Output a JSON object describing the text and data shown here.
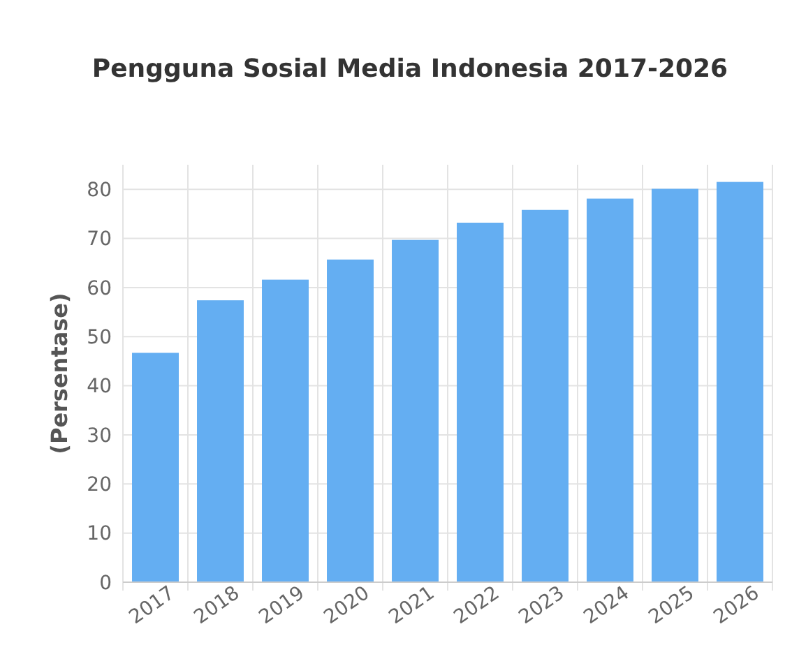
{
  "chart_data": {
    "type": "bar",
    "title": "Pengguna Sosial Media Indonesia 2017-2026",
    "ylabel": "(Persentase)",
    "categories": [
      "2017",
      "2018",
      "2019",
      "2020",
      "2021",
      "2022",
      "2023",
      "2024",
      "2025",
      "2026"
    ],
    "values": [
      46.7,
      57.4,
      61.6,
      65.7,
      69.7,
      73.2,
      75.8,
      78.1,
      80.1,
      81.5
    ],
    "color": "#64aef2",
    "ylim": [
      0,
      85
    ],
    "yticks": [
      0,
      10,
      20,
      30,
      40,
      50,
      60,
      70,
      80
    ],
    "grid": true
  }
}
